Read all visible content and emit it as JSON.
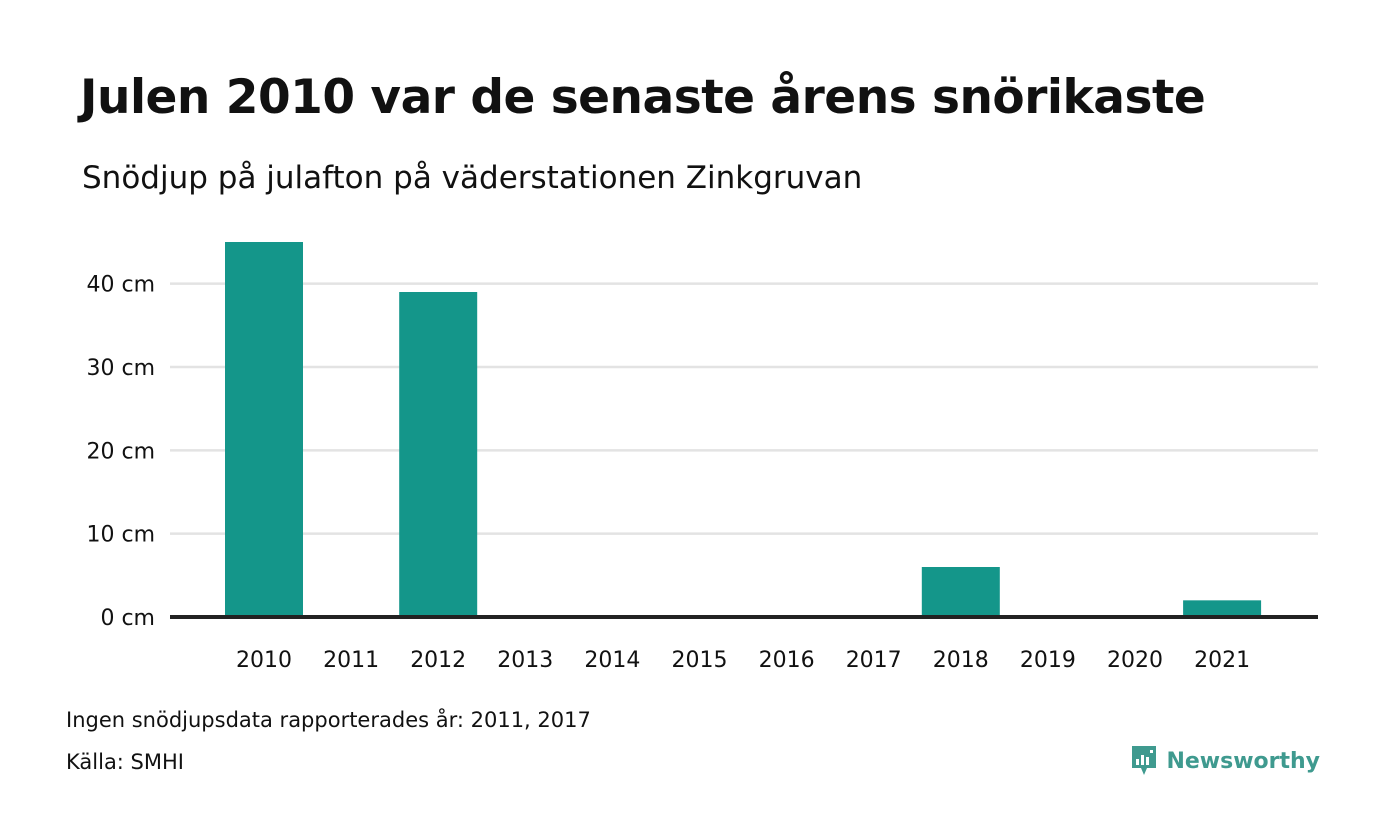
{
  "title": "Julen 2010 var de senaste årens snörikaste",
  "subtitle": "Snödjup på julafton på väderstationen Zinkgruvan",
  "note": "Ingen snödjupsdata rapporterades år: 2011, 2017",
  "source": "Källa: SMHI",
  "brand": {
    "name": "Newsworthy",
    "icon": "newsworthy-logo-icon",
    "color": "#3f9a8f"
  },
  "colors": {
    "bar": "#14968a",
    "grid": "#e3e3e3",
    "baseline": "#222222"
  },
  "chart_data": {
    "type": "bar",
    "title": "Julen 2010 var de senaste årens snörikaste",
    "subtitle": "Snödjup på julafton på väderstationen Zinkgruvan",
    "categories": [
      "2010",
      "2011",
      "2012",
      "2013",
      "2014",
      "2015",
      "2016",
      "2017",
      "2018",
      "2019",
      "2020",
      "2021"
    ],
    "values": [
      45,
      null,
      39,
      0,
      0,
      0,
      0,
      null,
      6,
      0,
      0,
      2
    ],
    "y_ticks": [
      0,
      10,
      20,
      30,
      40
    ],
    "y_tick_labels": [
      "0 cm",
      "10 cm",
      "20 cm",
      "30 cm",
      "40 cm"
    ],
    "ylim": [
      0,
      45
    ],
    "grid": true,
    "legend": "none"
  }
}
